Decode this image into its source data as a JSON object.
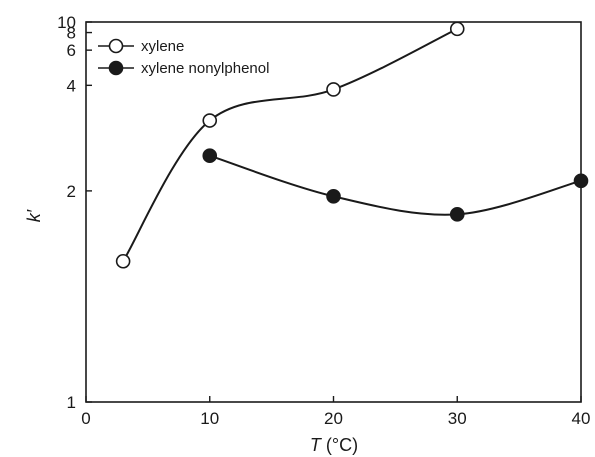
{
  "chart_data": {
    "type": "line",
    "xlabel_var": "T",
    "xlabel_unit": " (°C)",
    "ylabel": "k′",
    "xlim": [
      0,
      40
    ],
    "ylim": [
      1,
      10
    ],
    "xticks": [
      0,
      10,
      20,
      30,
      40
    ],
    "yticks": [
      {
        "value": 1,
        "label": "1"
      },
      {
        "value": 2,
        "label": "2"
      },
      {
        "value": 4,
        "label": "4"
      },
      {
        "value": 6,
        "label": "6"
      },
      {
        "value": 8,
        "label": "8"
      },
      {
        "value": 10,
        "label": "10"
      }
    ],
    "grid": false,
    "legend_position": "top-left",
    "series": [
      {
        "name": "xylene",
        "marker": "open-circle",
        "x": [
          3,
          10,
          20,
          30
        ],
        "y": [
          1.5,
          3.0,
          3.85,
          8.6
        ]
      },
      {
        "name": "xylene nonylphenol",
        "marker": "filled-circle",
        "x": [
          10,
          20,
          30,
          40
        ],
        "y": [
          2.4,
          1.95,
          1.8,
          2.1
        ]
      }
    ]
  }
}
